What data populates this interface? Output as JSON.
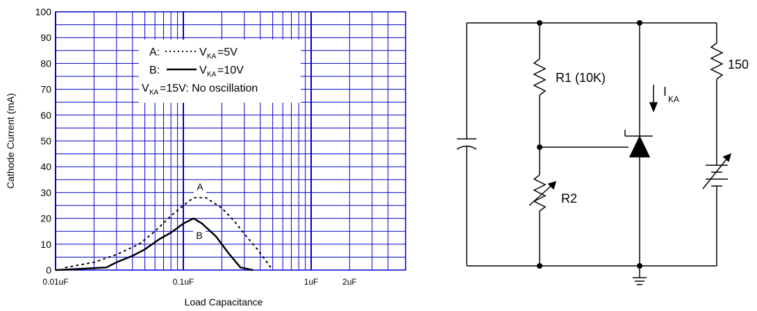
{
  "chart_data": {
    "type": "line",
    "x_scale": "log",
    "xlim": [
      0.01,
      4
    ],
    "ylim": [
      0,
      100
    ],
    "grid": true,
    "y_ticks": [
      "0",
      "10",
      "20",
      "30",
      "40",
      "50",
      "60",
      "70",
      "80",
      "90",
      "100"
    ],
    "x_tick_labels": [
      {
        "x": 0.01,
        "label": "0.01uF"
      },
      {
        "x": 0.1,
        "label": "0.1uF"
      },
      {
        "x": 1,
        "label": "1uF"
      },
      {
        "x": 2,
        "label": "2uF"
      }
    ],
    "ylabel": "Cathode Current (mA)",
    "xlabel": "Load Capacitance",
    "series": [
      {
        "name": "A",
        "style": "dotted",
        "x": [
          0.012,
          0.02,
          0.03,
          0.045,
          0.06,
          0.08,
          0.1,
          0.12,
          0.15,
          0.2,
          0.25,
          0.3,
          0.38,
          0.5
        ],
        "y": [
          1,
          3,
          6,
          10,
          15,
          21,
          25,
          28,
          28,
          24,
          19,
          14,
          8,
          0
        ]
      },
      {
        "name": "B",
        "style": "solid",
        "x": [
          0.01,
          0.025,
          0.03,
          0.04,
          0.05,
          0.065,
          0.08,
          0.1,
          0.12,
          0.14,
          0.18,
          0.23,
          0.28,
          0.35
        ],
        "y": [
          0,
          1,
          3,
          5.5,
          8,
          12,
          14.5,
          18,
          20,
          18,
          13,
          6,
          1,
          0
        ]
      }
    ],
    "legend": {
      "position": "top-center",
      "line_a_prefix": "A:",
      "line_a_sub": "KA",
      "line_a_suffix": "=5V",
      "line_b_prefix": "B:",
      "line_b_sub": "KA",
      "line_b_suffix": "=10V",
      "line_c_sub": "KA",
      "line_c_suffix": "=15V: No oscillation",
      "v": "V"
    },
    "curve_labels": {
      "a": "A",
      "b": "B"
    },
    "colors": {
      "grid": "#0000cc",
      "curve": "#000000"
    }
  },
  "circuit": {
    "r1_label": "R1 (10K)",
    "r2_label": "R2",
    "resistor_label": "150",
    "current_label": "I",
    "current_sub": "KA"
  }
}
